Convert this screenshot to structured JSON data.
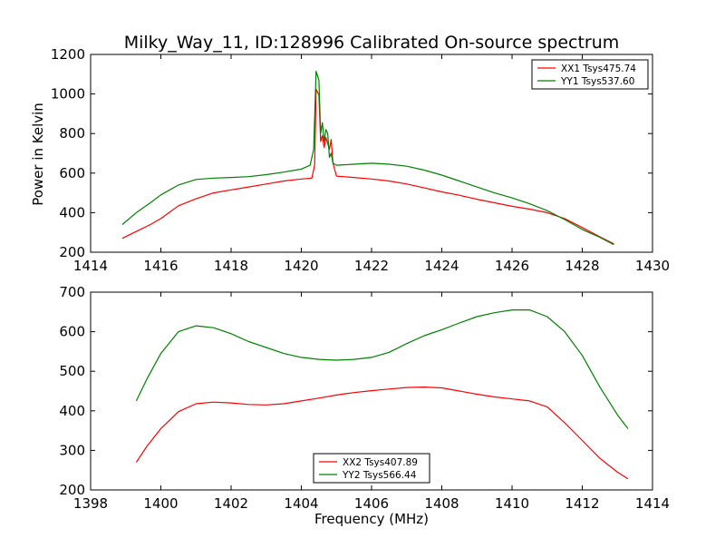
{
  "figure": {
    "title": "Milky_Way_11, ID:128996 Calibrated On-source spectrum",
    "ylabel": "Power in Kelvin",
    "xlabel": "Frequency (MHz)"
  },
  "chart_data": [
    {
      "type": "line",
      "xlim": [
        1414,
        1430
      ],
      "ylim": [
        200,
        1200
      ],
      "xticks": [
        1414,
        1416,
        1418,
        1420,
        1422,
        1424,
        1426,
        1428,
        1430
      ],
      "yticks": [
        200,
        400,
        600,
        800,
        1000,
        1200
      ],
      "legend_position": "top-right",
      "series": [
        {
          "name": "XX1 Tsys475.74",
          "color": "#ff0000",
          "x": [
            1414.9,
            1415.3,
            1415.7,
            1416.0,
            1416.5,
            1417.0,
            1417.5,
            1418.0,
            1418.5,
            1419.0,
            1419.5,
            1420.0,
            1420.3,
            1420.38,
            1420.42,
            1420.5,
            1420.55,
            1420.6,
            1420.65,
            1420.7,
            1420.75,
            1420.8,
            1420.85,
            1420.9,
            1421.0,
            1421.5,
            1422.0,
            1422.5,
            1423.0,
            1423.5,
            1424.0,
            1424.5,
            1425.0,
            1425.5,
            1426.0,
            1426.5,
            1427.0,
            1427.5,
            1428.0,
            1428.5,
            1428.9
          ],
          "y": [
            270,
            305,
            340,
            370,
            435,
            470,
            500,
            515,
            530,
            545,
            560,
            570,
            575,
            640,
            1025,
            995,
            760,
            790,
            730,
            780,
            750,
            720,
            770,
            650,
            585,
            578,
            570,
            560,
            545,
            525,
            505,
            488,
            468,
            450,
            432,
            418,
            400,
            370,
            325,
            278,
            242
          ]
        },
        {
          "name": "YY1 Tsys537.60",
          "color": "#008000",
          "x": [
            1414.9,
            1415.3,
            1415.7,
            1416.0,
            1416.5,
            1417.0,
            1417.5,
            1418.0,
            1418.5,
            1419.0,
            1419.5,
            1420.0,
            1420.25,
            1420.35,
            1420.42,
            1420.5,
            1420.55,
            1420.6,
            1420.65,
            1420.7,
            1420.75,
            1420.8,
            1420.85,
            1420.9,
            1421.0,
            1421.5,
            1422.0,
            1422.5,
            1423.0,
            1423.5,
            1424.0,
            1424.5,
            1425.0,
            1425.5,
            1426.0,
            1426.5,
            1427.0,
            1427.5,
            1428.0,
            1428.5,
            1428.9
          ],
          "y": [
            340,
            400,
            450,
            490,
            540,
            568,
            575,
            578,
            582,
            592,
            605,
            620,
            640,
            720,
            1115,
            1070,
            800,
            855,
            760,
            820,
            800,
            680,
            700,
            650,
            640,
            645,
            650,
            645,
            635,
            615,
            590,
            560,
            530,
            500,
            475,
            445,
            410,
            365,
            315,
            275,
            238
          ]
        }
      ]
    },
    {
      "type": "line",
      "xlim": [
        1398,
        1414
      ],
      "ylim": [
        200,
        700
      ],
      "xticks": [
        1398,
        1400,
        1402,
        1404,
        1406,
        1408,
        1410,
        1412,
        1414
      ],
      "yticks": [
        200,
        300,
        400,
        500,
        600,
        700
      ],
      "legend_position": "bottom-center",
      "series": [
        {
          "name": "XX2 Tsys407.89",
          "color": "#ff0000",
          "x": [
            1399.3,
            1399.6,
            1400.0,
            1400.5,
            1401.0,
            1401.5,
            1402.0,
            1402.5,
            1403.0,
            1403.5,
            1404.0,
            1404.5,
            1405.0,
            1405.5,
            1406.0,
            1406.5,
            1407.0,
            1407.5,
            1408.0,
            1408.5,
            1409.0,
            1409.5,
            1410.0,
            1410.5,
            1411.0,
            1411.5,
            1412.0,
            1412.5,
            1413.0,
            1413.3
          ],
          "y": [
            270,
            310,
            355,
            398,
            418,
            422,
            420,
            416,
            415,
            418,
            425,
            432,
            440,
            446,
            451,
            455,
            459,
            460,
            458,
            450,
            442,
            435,
            430,
            425,
            410,
            370,
            325,
            280,
            245,
            228
          ]
        },
        {
          "name": "YY2 Tsys566.44",
          "color": "#008000",
          "x": [
            1399.3,
            1399.6,
            1400.0,
            1400.5,
            1401.0,
            1401.5,
            1402.0,
            1402.5,
            1403.0,
            1403.5,
            1404.0,
            1404.5,
            1405.0,
            1405.5,
            1406.0,
            1406.5,
            1407.0,
            1407.5,
            1408.0,
            1408.5,
            1409.0,
            1409.5,
            1410.0,
            1410.5,
            1411.0,
            1411.5,
            1412.0,
            1412.5,
            1413.0,
            1413.3
          ],
          "y": [
            425,
            480,
            545,
            600,
            615,
            610,
            595,
            575,
            560,
            545,
            535,
            530,
            528,
            530,
            535,
            548,
            570,
            590,
            605,
            622,
            638,
            648,
            655,
            655,
            638,
            600,
            540,
            460,
            390,
            355
          ]
        }
      ]
    }
  ]
}
